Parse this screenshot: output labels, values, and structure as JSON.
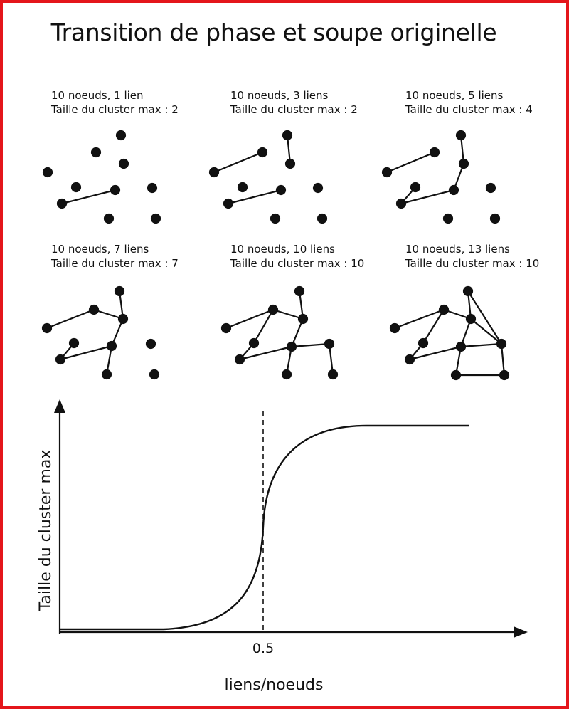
{
  "title": "Transition de phase et soupe originelle",
  "panels": [
    {
      "label": "10 noeuds, 1 lien",
      "cluster": "Taille du cluster max : 2"
    },
    {
      "label": "10 noeuds, 3 liens",
      "cluster": "Taille du cluster max : 2"
    },
    {
      "label": "10 noeuds, 5 liens",
      "cluster": "Taille du cluster max : 4"
    },
    {
      "label": "10 noeuds, 7 liens",
      "cluster": "Taille du cluster max : 7"
    },
    {
      "label": "10 noeuds, 10 liens",
      "cluster": "Taille du cluster max : 10"
    },
    {
      "label": "10 noeuds, 13 liens",
      "cluster": "Taille du cluster max : 10"
    }
  ],
  "chart": {
    "xlabel": "liens/noeuds",
    "ylabel": "Taille du cluster max",
    "xtick": "0.5"
  },
  "colors": {
    "frame": "#e4161b",
    "ink": "#111111"
  }
}
